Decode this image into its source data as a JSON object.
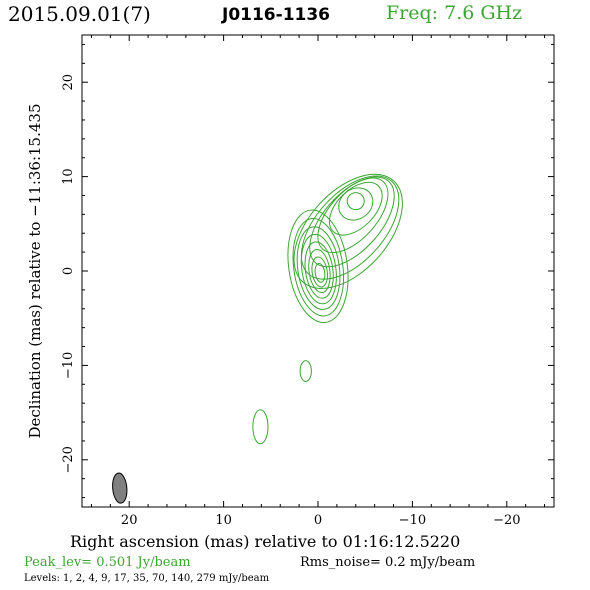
{
  "header": {
    "date": "2015.09.01(7)",
    "source": "J0116-1136",
    "freq": "Freq: 7.6 GHz"
  },
  "footer": {
    "peak": "Peak_lev=  0.501 Jy/beam",
    "rms": "Rms_noise=  0.2 mJy/beam",
    "levels": "Levels:   1,   2,   4,   9,  17,  35,  70, 140, 279 mJy/beam"
  },
  "colors": {
    "contour": "#3aa631",
    "beam": "#808080"
  },
  "chart_data": {
    "type": "contour",
    "xlabel": "Right ascension (mas) relative to 01:16:12.5220",
    "ylabel": "Declination (mas) relative to −11:36:15.435",
    "xlim": [
      25,
      -25
    ],
    "ylim": [
      -25,
      25
    ],
    "x_ticks": [
      20,
      10,
      0,
      -10,
      -20
    ],
    "y_ticks": [
      20,
      10,
      0,
      -10,
      -20
    ],
    "x_tick_labels": [
      "20",
      "10",
      "0",
      "−10",
      "−20"
    ],
    "y_tick_labels": [
      "20",
      "10",
      "0",
      "−10",
      "−20"
    ],
    "levels_mJy_per_beam": [
      1,
      2,
      4,
      9,
      17,
      35,
      70,
      140,
      279
    ],
    "peak_Jy_per_beam": 0.501,
    "rms_noise_mJy_per_beam": 0.2,
    "core": {
      "x": 0.0,
      "y": 0.5
    },
    "jet_knot": {
      "x": -4.0,
      "y": 7.5
    },
    "components": [
      {
        "x": 1.3,
        "y": -10.6
      },
      {
        "x": 6.1,
        "y": -16.5
      }
    ],
    "beam": {
      "x": 21.0,
      "y": -23.0,
      "major_mas": 3.2,
      "minor_mas": 1.5,
      "pa_deg": 5
    }
  }
}
